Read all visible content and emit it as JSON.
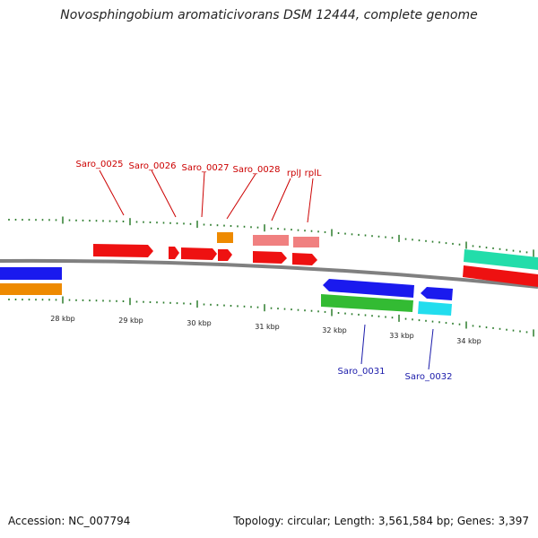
{
  "title": "Novosphingobium aromaticivorans DSM 12444, complete genome",
  "footer": {
    "accession": "Accession: NC_007794",
    "summary": "Topology: circular; Length: 3,561,584 bp; Genes: 3,397"
  },
  "colors": {
    "backbone": "#808080",
    "ticks": "#2e7d2e",
    "label_top": "#cc0000",
    "label_bottom": "#1a1aaa",
    "red": "#ee1111",
    "blue": "#1a1aee",
    "orange": "#ee8a00",
    "pink": "#f08080",
    "green": "#33bb33",
    "cyan": "#22ddee",
    "teal": "#22ddaa"
  },
  "scale_labels": [
    "28 kbp",
    "29 kbp",
    "30 kbp",
    "31 kbp",
    "32 kbp",
    "33 kbp",
    "34 kbp"
  ],
  "gene_labels_top": [
    "Saro_0025",
    "Saro_0026",
    "Saro_0027",
    "Saro_0028",
    "rplJ",
    "rplL"
  ],
  "gene_labels_bottom": [
    "Saro_0031",
    "Saro_0032"
  ]
}
